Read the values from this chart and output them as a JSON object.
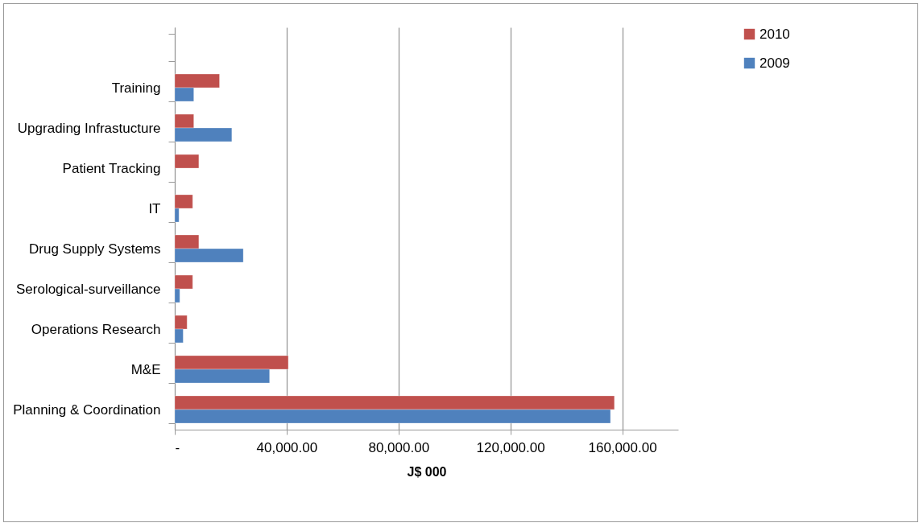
{
  "chart_data": {
    "type": "bar",
    "orientation": "horizontal",
    "xlabel": "J$ 000",
    "categories": [
      null,
      "Training",
      "Upgrading Infrastucture",
      "Patient Tracking",
      "IT",
      "Drug Supply Systems",
      "Serological-surveillance",
      "Operations Research",
      "M&E",
      "Planning & Coordination"
    ],
    "series": [
      {
        "name": "2010",
        "color": "#c0504d",
        "values": [
          null,
          16000,
          6800,
          8600,
          6400,
          8600,
          6400,
          4400,
          40600,
          157200
        ]
      },
      {
        "name": "2009",
        "color": "#4f81bd",
        "values": [
          null,
          6800,
          20400,
          null,
          1500,
          24500,
          1800,
          3000,
          33900,
          155800
        ]
      }
    ],
    "xlim": [
      0,
      180000
    ],
    "xticks": [
      {
        "value": 0,
        "label": "-"
      },
      {
        "value": 40000,
        "label": "40,000.00"
      },
      {
        "value": 80000,
        "label": "80,000.00"
      },
      {
        "value": 120000,
        "label": "120,000.00"
      },
      {
        "value": 160000,
        "label": "160,000.00"
      }
    ],
    "grid": "x",
    "legend": "right"
  }
}
